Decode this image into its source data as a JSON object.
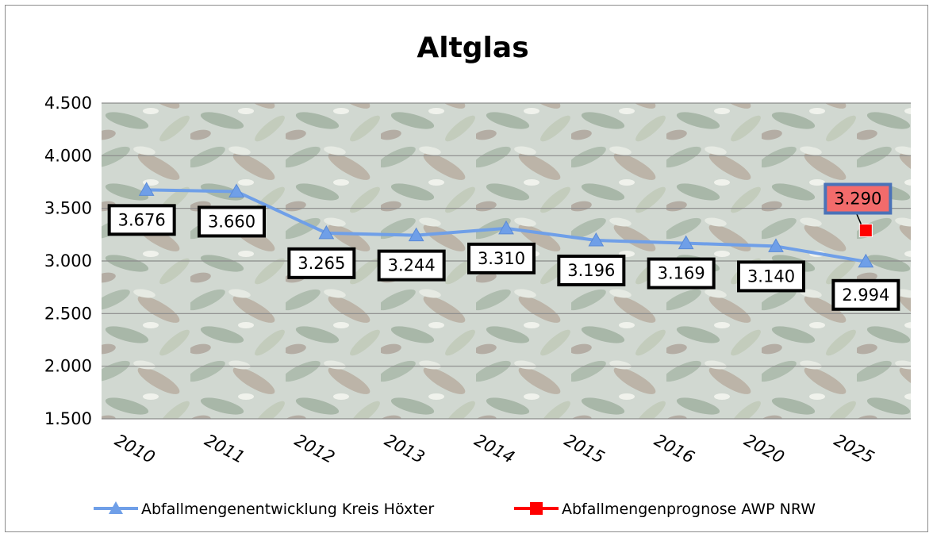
{
  "chart_data": {
    "type": "line",
    "title": "Altglas",
    "categories": [
      "2010",
      "2011",
      "2012",
      "2013",
      "2014",
      "2015",
      "2016",
      "2020",
      "2025"
    ],
    "ylim": [
      1500,
      4500
    ],
    "yticks": [
      1500,
      2000,
      2500,
      3000,
      3500,
      4000,
      4500
    ],
    "ytick_labels": [
      "1.500",
      "2.000",
      "2.500",
      "3.000",
      "3.500",
      "4.000",
      "4.500"
    ],
    "grid": true,
    "legend_position": "bottom",
    "background": "photo of discarded glass bottles (faded)",
    "series": [
      {
        "name": "Abfallmengenentwicklung Kreis Höxter",
        "color": "#6f9fe8",
        "marker": "triangle",
        "values": [
          3676,
          3660,
          3265,
          3244,
          3310,
          3196,
          3169,
          3140,
          2994
        ],
        "labels": [
          "3.676",
          "3.660",
          "3.265",
          "3.244",
          "3.310",
          "3.196",
          "3.169",
          "3.140",
          "2.994"
        ]
      },
      {
        "name": "Abfallmengenprognose AWP NRW",
        "color": "#ff0000",
        "marker": "square",
        "values": [
          null,
          null,
          null,
          null,
          null,
          null,
          null,
          null,
          3290
        ],
        "labels": [
          null,
          null,
          null,
          null,
          null,
          null,
          null,
          null,
          "3.290"
        ]
      }
    ]
  }
}
